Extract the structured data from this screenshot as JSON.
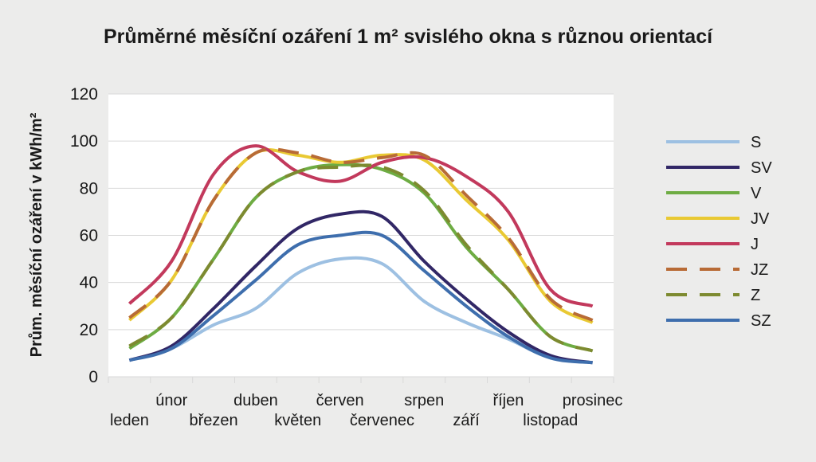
{
  "chart_data": {
    "type": "line",
    "title": "Průměrné měsíční ozáření 1 m²  svislého okna s různou orientací",
    "xlabel": "",
    "ylabel": "Prům. měsíční ozáření v kWh/m²",
    "ylim": [
      0,
      120
    ],
    "yticks": [
      "0",
      "20",
      "40",
      "60",
      "80",
      "100",
      "120"
    ],
    "categories": [
      "leden",
      "únor",
      "březen",
      "duben",
      "květen",
      "červen",
      "červenec",
      "srpen",
      "září",
      "říjen",
      "listopad",
      "prosinec"
    ],
    "grid": true,
    "legend_position": "right",
    "series": [
      {
        "name": "S",
        "color": "#9dc0e2",
        "dash": false,
        "values": [
          7,
          12,
          22,
          29,
          44,
          50,
          48,
          32,
          23,
          16,
          8,
          6
        ]
      },
      {
        "name": "SV",
        "color": "#312766",
        "dash": false,
        "values": [
          7,
          13,
          29,
          47,
          63,
          69,
          68,
          49,
          33,
          19,
          9,
          6
        ]
      },
      {
        "name": "V",
        "color": "#6eac43",
        "dash": false,
        "values": [
          12,
          25,
          50,
          76,
          87,
          90,
          88,
          78,
          55,
          37,
          17,
          11
        ]
      },
      {
        "name": "JV",
        "color": "#e9c933",
        "dash": false,
        "values": [
          24,
          41,
          75,
          95,
          94,
          91,
          94,
          92,
          75,
          58,
          32,
          23
        ]
      },
      {
        "name": "J",
        "color": "#c2395c",
        "dash": false,
        "values": [
          31,
          49,
          86,
          98,
          87,
          83,
          91,
          93,
          85,
          70,
          37,
          30
        ]
      },
      {
        "name": "JZ",
        "color": "#b86b36",
        "dash": true,
        "values": [
          25,
          41,
          75,
          95,
          95,
          91,
          93,
          94,
          77,
          59,
          33,
          24
        ]
      },
      {
        "name": "Z",
        "color": "#7d8a30",
        "dash": true,
        "values": [
          13,
          25,
          50,
          76,
          87,
          89,
          89,
          79,
          56,
          37,
          17,
          11
        ]
      },
      {
        "name": "SZ",
        "color": "#3e6ead",
        "dash": false,
        "values": [
          7,
          12,
          26,
          41,
          56,
          60,
          60,
          45,
          30,
          17,
          8,
          6
        ]
      }
    ]
  }
}
